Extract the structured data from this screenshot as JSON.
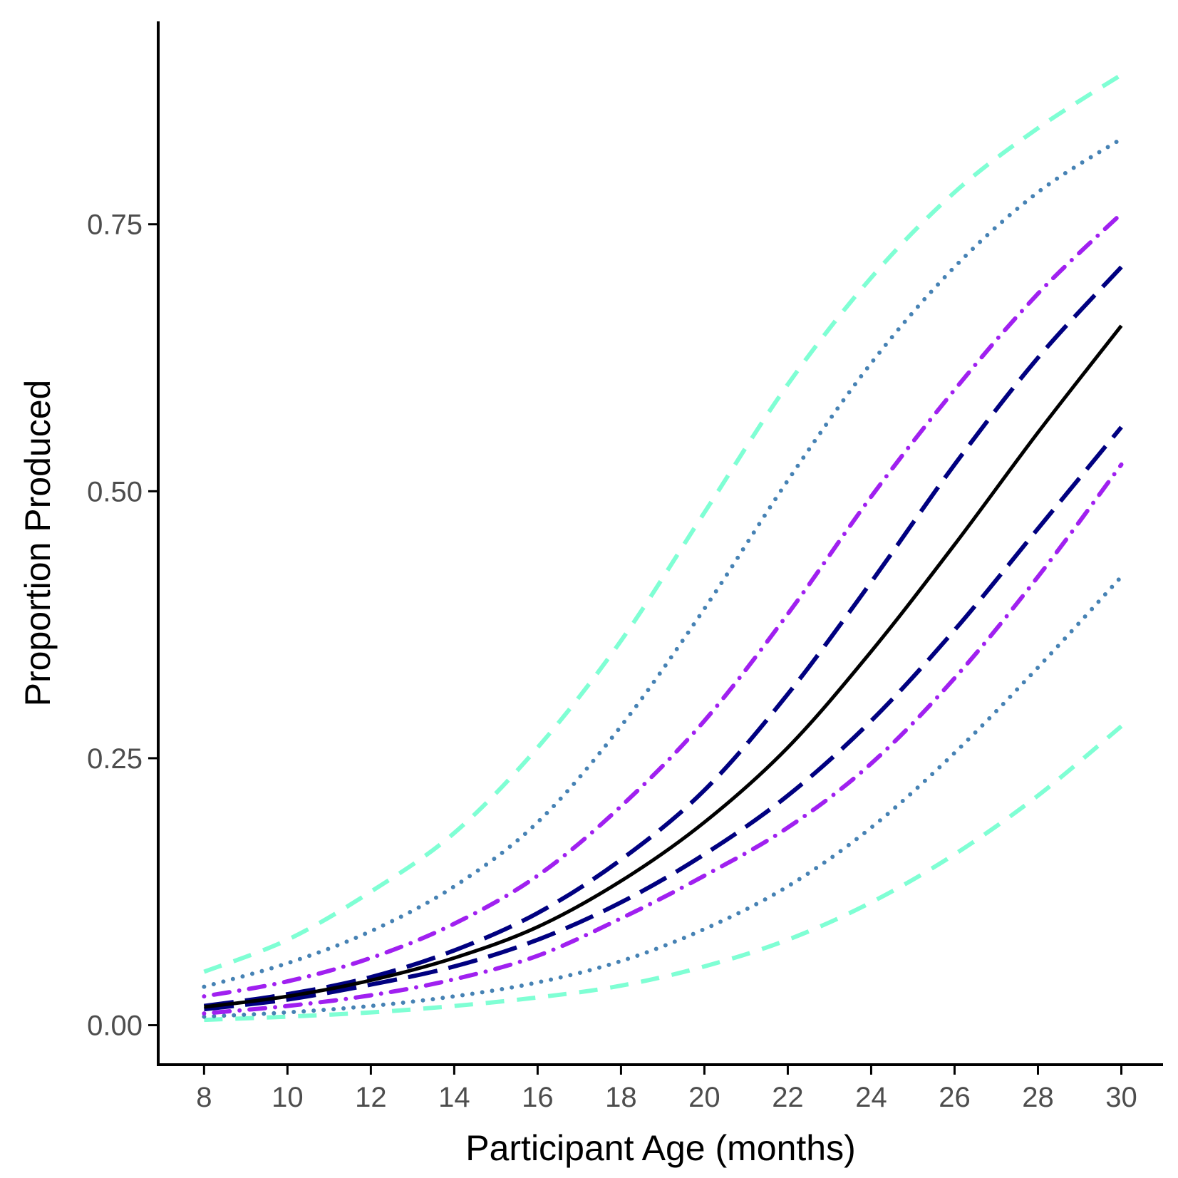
{
  "chart_data": {
    "type": "line",
    "title": "",
    "xlabel": "Participant Age (months)",
    "ylabel": "Proportion Produced",
    "xlim": [
      6.9,
      31.0
    ],
    "ylim": [
      -0.037,
      0.94
    ],
    "x_ticks": [
      8,
      10,
      12,
      14,
      16,
      18,
      20,
      22,
      24,
      26,
      28,
      30
    ],
    "x_tick_labels": [
      "8",
      "10",
      "12",
      "14",
      "16",
      "18",
      "20",
      "22",
      "24",
      "26",
      "28",
      "30"
    ],
    "y_ticks": [
      0.0,
      0.25,
      0.5,
      0.75
    ],
    "y_tick_labels": [
      "0.00",
      "0.25",
      "0.50",
      "0.75"
    ],
    "grid": false,
    "legend": "none",
    "x": [
      8,
      10,
      12,
      14,
      16,
      18,
      20,
      22,
      24,
      26,
      28,
      30
    ],
    "series": [
      {
        "color": "#7fffd4",
        "dash": "dashed",
        "values": [
          0.05,
          0.08,
          0.125,
          0.18,
          0.26,
          0.36,
          0.48,
          0.6,
          0.7,
          0.78,
          0.84,
          0.89
        ]
      },
      {
        "color": "#7fffd4",
        "dash": "dashed",
        "values": [
          0.005,
          0.008,
          0.012,
          0.018,
          0.026,
          0.037,
          0.055,
          0.08,
          0.115,
          0.16,
          0.215,
          0.28
        ]
      },
      {
        "color": "#4682b4",
        "dash": "dotted",
        "values": [
          0.036,
          0.058,
          0.088,
          0.13,
          0.19,
          0.28,
          0.39,
          0.51,
          0.62,
          0.71,
          0.78,
          0.83
        ]
      },
      {
        "color": "#4682b4",
        "dash": "dotted",
        "values": [
          0.008,
          0.012,
          0.018,
          0.027,
          0.04,
          0.06,
          0.09,
          0.13,
          0.185,
          0.255,
          0.335,
          0.42
        ]
      },
      {
        "color": "#a020f0",
        "dash": "dotdash",
        "values": [
          0.027,
          0.041,
          0.063,
          0.095,
          0.14,
          0.205,
          0.285,
          0.385,
          0.495,
          0.595,
          0.685,
          0.76
        ]
      },
      {
        "color": "#a020f0",
        "dash": "dotdash",
        "values": [
          0.011,
          0.018,
          0.028,
          0.043,
          0.065,
          0.1,
          0.14,
          0.185,
          0.245,
          0.325,
          0.42,
          0.525
        ]
      },
      {
        "color": "#000080",
        "dash": "longdash",
        "values": [
          0.018,
          0.029,
          0.045,
          0.07,
          0.105,
          0.155,
          0.22,
          0.31,
          0.415,
          0.525,
          0.625,
          0.71
        ]
      },
      {
        "color": "#000080",
        "dash": "longdash",
        "values": [
          0.015,
          0.024,
          0.038,
          0.055,
          0.08,
          0.115,
          0.16,
          0.215,
          0.285,
          0.37,
          0.465,
          0.56
        ]
      },
      {
        "color": "#000000",
        "dash": "solid",
        "values": [
          0.017,
          0.027,
          0.042,
          0.063,
          0.092,
          0.135,
          0.19,
          0.26,
          0.35,
          0.45,
          0.555,
          0.655
        ]
      }
    ]
  }
}
